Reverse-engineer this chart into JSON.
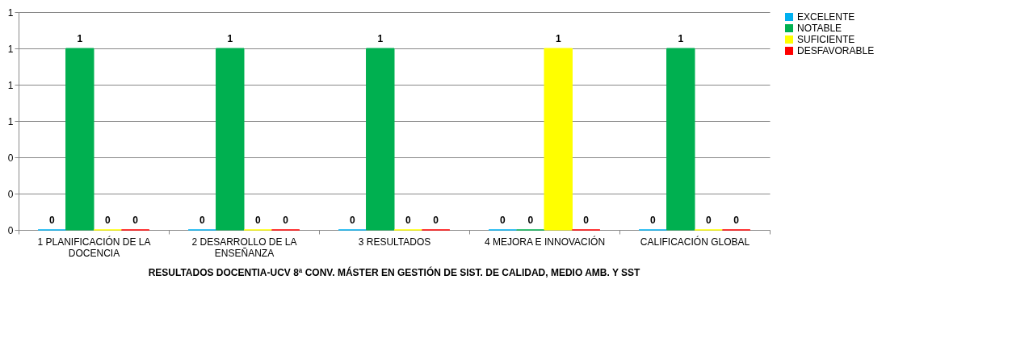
{
  "chart_data": {
    "type": "bar",
    "title": "RESULTADOS DOCENTIA-UCV 8ª CONV. MÁSTER EN GESTIÓN DE SIST. DE CALIDAD, MEDIO AMB. Y SST",
    "categories": [
      "1 PLANIFICACIÓN DE LA DOCENCIA",
      "2 DESARROLLO DE LA ENSEÑANZA",
      "3 RESULTADOS",
      "4 MEJORA E INNOVACIÓN",
      "CALIFICACIÓN GLOBAL"
    ],
    "series": [
      {
        "name": "EXCELENTE",
        "color": "#00b0f0",
        "values": [
          0,
          0,
          0,
          0,
          0
        ]
      },
      {
        "name": "NOTABLE",
        "color": "#00b050",
        "values": [
          1,
          1,
          1,
          0,
          1
        ]
      },
      {
        "name": "SUFICIENTE",
        "color": "#ffff00",
        "values": [
          0,
          0,
          0,
          1,
          0
        ]
      },
      {
        "name": "DESFAVORABLE",
        "color": "#ff0000",
        "values": [
          0,
          0,
          0,
          0,
          0
        ]
      }
    ],
    "ylim": [
      0,
      1.2
    ],
    "yticks": [
      0,
      {
        "value": 0.2,
        "label": "0"
      },
      {
        "value": 0.4,
        "label": "0"
      },
      {
        "value": 0.6,
        "label": "1"
      },
      {
        "value": 0.8,
        "label": "1"
      },
      {
        "value": 1,
        "label": "1"
      },
      {
        "value": 1.2,
        "label": "1"
      }
    ],
    "grid": "y",
    "legend": "right",
    "data_labels": true
  }
}
